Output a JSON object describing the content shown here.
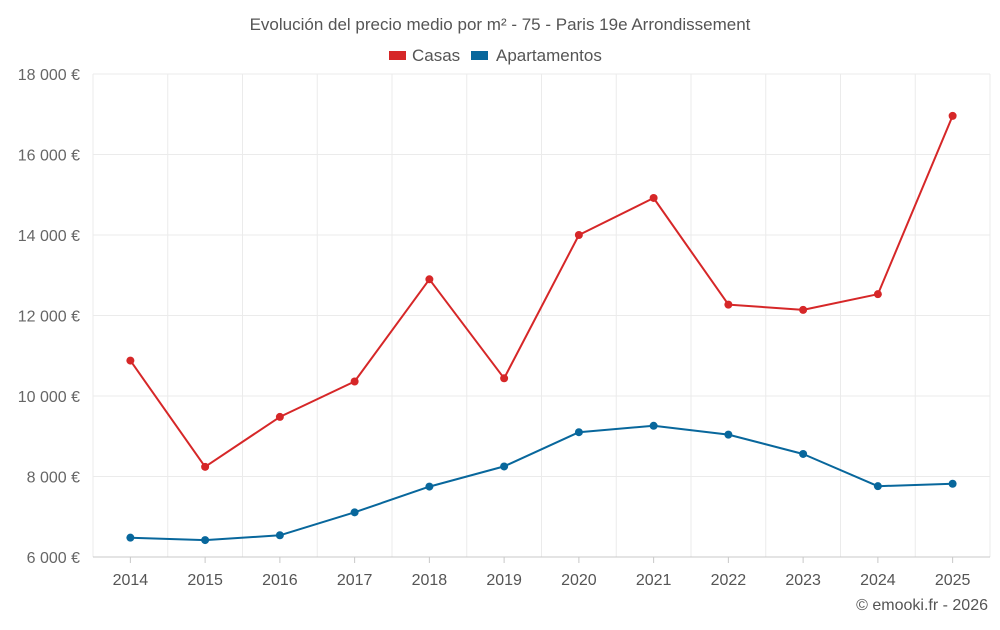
{
  "chart_data": {
    "type": "line",
    "title": "Evolución del precio medio por m² - 75 - Paris 19e Arrondissement",
    "categories": [
      "2014",
      "2015",
      "2016",
      "2017",
      "2018",
      "2019",
      "2020",
      "2021",
      "2022",
      "2023",
      "2024",
      "2025"
    ],
    "series": [
      {
        "name": "Casas",
        "color": "#d62728",
        "values": [
          10880,
          8240,
          9480,
          10360,
          12900,
          10440,
          14000,
          14920,
          12270,
          12140,
          12530,
          16960
        ]
      },
      {
        "name": "Apartamentos",
        "color": "#08679c",
        "values": [
          6480,
          6420,
          6540,
          7110,
          7750,
          8250,
          9100,
          9260,
          9040,
          8560,
          7760,
          7820
        ]
      }
    ],
    "ylim": [
      6000,
      18000
    ],
    "yticks": [
      6000,
      8000,
      10000,
      12000,
      14000,
      16000,
      18000
    ],
    "ytick_labels": [
      "6 000 €",
      "8 000 €",
      "10 000 €",
      "12 000 €",
      "14 000 €",
      "16 000 €",
      "18 000 €"
    ],
    "xlabel": "",
    "ylabel": "",
    "grid": true,
    "legend_position": "top-center"
  },
  "credit": "© emooki.fr - 2026"
}
